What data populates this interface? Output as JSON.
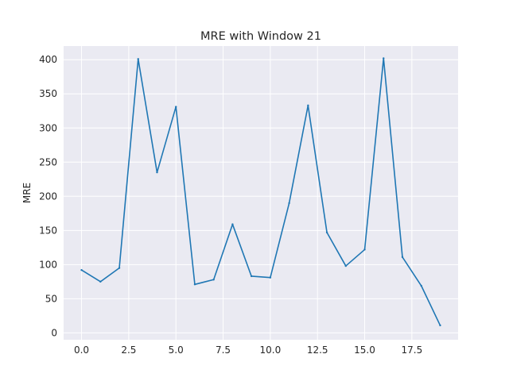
{
  "chart_data": {
    "type": "line",
    "title": "MRE with Window 21",
    "xlabel": "",
    "ylabel": "MRE",
    "xlim": [
      -0.95,
      19.95
    ],
    "ylim": [
      -10,
      420
    ],
    "xticks": [
      0.0,
      2.5,
      5.0,
      7.5,
      10.0,
      12.5,
      15.0,
      17.5
    ],
    "xtick_labels": [
      "0.0",
      "2.5",
      "5.0",
      "7.5",
      "10.0",
      "12.5",
      "15.0",
      "17.5"
    ],
    "yticks": [
      0,
      50,
      100,
      150,
      200,
      250,
      300,
      350,
      400
    ],
    "ytick_labels": [
      "0",
      "50",
      "100",
      "150",
      "200",
      "250",
      "300",
      "350",
      "400"
    ],
    "grid": true,
    "series": [
      {
        "color": "#1f77b4",
        "x": [
          0,
          1,
          2,
          3,
          4,
          5,
          6,
          7,
          8,
          9,
          10,
          11,
          12,
          13,
          14,
          15,
          16,
          17,
          18,
          19
        ],
        "values": [
          92,
          75,
          95,
          401,
          235,
          331,
          71,
          78,
          159,
          83,
          81,
          190,
          333,
          147,
          98,
          122,
          402,
          111,
          69,
          11
        ]
      }
    ]
  }
}
